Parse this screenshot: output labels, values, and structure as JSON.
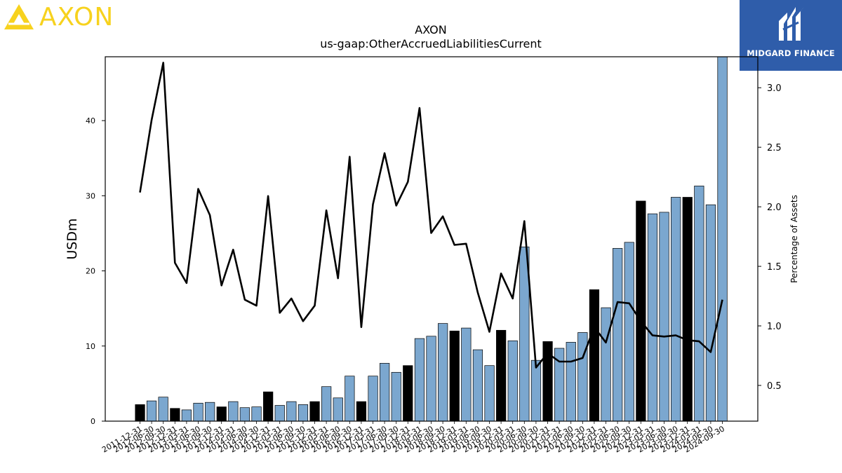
{
  "branding": {
    "company_logo_text": "AXON",
    "company_logo_color": "#F7D21E",
    "publisher_logo_text": "MIDGARD FINANCE",
    "publisher_bg_color": "#2F5DAA"
  },
  "chart_data": {
    "type": "bar",
    "title": "AXON",
    "subtitle": "us-gaap:OtherAccruedLiabilitiesCurrent",
    "ylabel": "USDm",
    "y2label": "Percentage of Assets",
    "ylim": [
      0,
      48.5
    ],
    "y2lim": [
      0.2,
      3.26
    ],
    "yticks": [
      0,
      10,
      20,
      30,
      40
    ],
    "y2ticks": [
      "0.5",
      "1.0",
      "1.5",
      "2.0",
      "2.5",
      "3.0"
    ],
    "categories": [
      "2011-12-31",
      "2012-06-30",
      "2012-09-30",
      "2012-12-31",
      "2013-03-31",
      "2013-06-30",
      "2013-09-30",
      "2013-12-31",
      "2014-03-31",
      "2014-06-30",
      "2014-09-30",
      "2014-12-31",
      "2015-03-31",
      "2015-06-30",
      "2015-09-30",
      "2015-12-31",
      "2016-03-31",
      "2016-06-30",
      "2016-09-30",
      "2016-12-31",
      "2017-03-31",
      "2017-06-30",
      "2017-09-30",
      "2017-12-31",
      "2018-03-31",
      "2018-06-30",
      "2018-09-30",
      "2018-12-31",
      "2019-03-31",
      "2019-06-30",
      "2019-09-30",
      "2019-12-31",
      "2020-03-31",
      "2020-06-30",
      "2020-09-30",
      "2020-12-31",
      "2021-03-31",
      "2021-06-30",
      "2021-09-30",
      "2021-12-31",
      "2022-03-31",
      "2022-06-30",
      "2022-09-30",
      "2022-12-31",
      "2023-03-31",
      "2023-06-30",
      "2023-09-30",
      "2023-12-31",
      "2024-03-31",
      "2024-06-30",
      "2024-09-30"
    ],
    "series": [
      {
        "kind": "bar",
        "values": [
          2.2,
          2.7,
          3.2,
          1.7,
          1.5,
          2.4,
          2.5,
          1.9,
          2.6,
          1.8,
          1.9,
          3.9,
          2.1,
          2.6,
          2.2,
          2.6,
          4.6,
          3.1,
          6.0,
          2.6,
          6.0,
          7.7,
          6.5,
          7.4,
          11.0,
          11.3,
          13.0,
          12.0,
          12.4,
          9.5,
          7.4,
          12.1,
          10.7,
          23.2,
          8.1,
          10.6,
          9.7,
          10.5,
          11.8,
          17.5,
          15.1,
          23.0,
          23.8,
          29.3,
          27.6,
          27.8,
          29.8,
          29.8,
          31.3,
          28.8,
          48.5
        ],
        "year_end_flags": [
          1,
          0,
          0,
          1,
          0,
          0,
          0,
          1,
          0,
          0,
          0,
          1,
          0,
          0,
          0,
          1,
          0,
          0,
          0,
          1,
          0,
          0,
          0,
          1,
          0,
          0,
          0,
          1,
          0,
          0,
          0,
          1,
          0,
          0,
          0,
          1,
          0,
          0,
          0,
          1,
          0,
          0,
          0,
          1,
          0,
          0,
          0,
          1,
          0,
          0,
          0
        ]
      },
      {
        "kind": "line",
        "axis": "right",
        "values": [
          2.12,
          2.73,
          3.21,
          1.53,
          1.36,
          2.15,
          1.93,
          1.34,
          1.64,
          1.22,
          1.17,
          2.09,
          1.11,
          1.23,
          1.04,
          1.17,
          1.97,
          1.4,
          2.42,
          0.99,
          2.02,
          2.45,
          2.01,
          2.21,
          2.83,
          1.78,
          1.92,
          1.68,
          1.69,
          1.28,
          0.95,
          1.44,
          1.23,
          1.88,
          0.65,
          0.77,
          0.7,
          0.7,
          0.73,
          0.99,
          0.86,
          1.2,
          1.19,
          1.04,
          0.92,
          0.91,
          0.92,
          0.88,
          0.87,
          0.78,
          1.22
        ]
      }
    ],
    "colors": {
      "bar_regular": "#7BA7CF",
      "bar_year_end": "#000000",
      "line": "#000000"
    }
  }
}
